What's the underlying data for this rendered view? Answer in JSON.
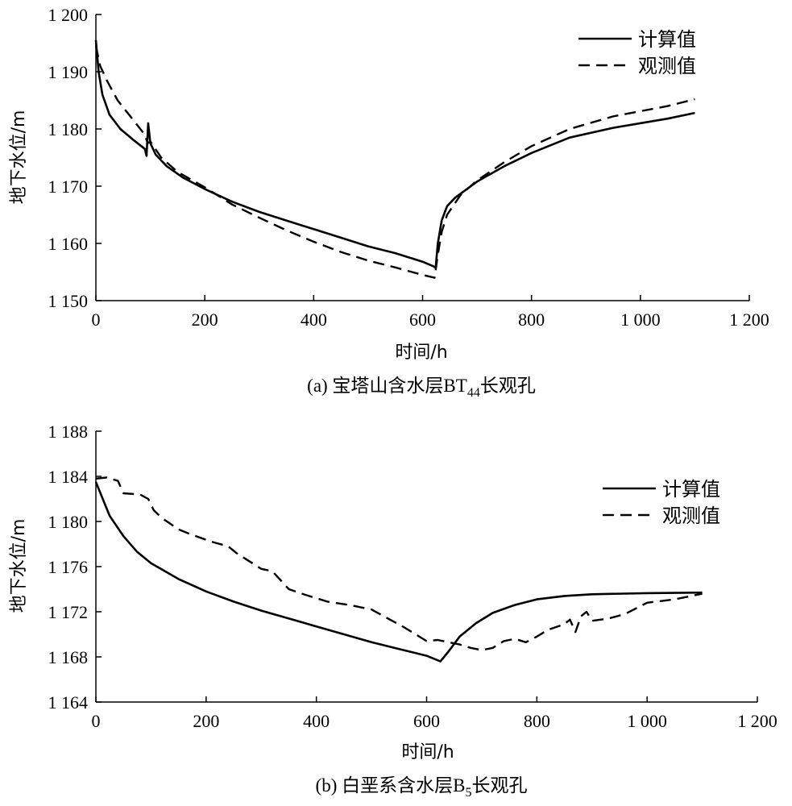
{
  "chart_data": [
    {
      "type": "line",
      "caption": "(a) 宝塔山含水层BT44长观孔",
      "caption_main": "(a) 宝塔山含水层BT",
      "caption_sub": "44",
      "caption_tail": "长观孔",
      "xlabel": "时间/h",
      "ylabel": "地下水位/m",
      "xlim": [
        0,
        1200
      ],
      "ylim": [
        1150,
        1200
      ],
      "xticks": [
        0,
        200,
        400,
        600,
        800,
        1000,
        1200
      ],
      "xtick_labels": [
        "0",
        "200",
        "400",
        "600",
        "800",
        "1 000",
        "1 200"
      ],
      "yticks": [
        1150,
        1160,
        1170,
        1180,
        1190,
        1200
      ],
      "ytick_labels": [
        "1 150",
        "1 160",
        "1 170",
        "1 180",
        "1 190",
        "1 200"
      ],
      "grid": false,
      "legend_position": "top-right",
      "series": [
        {
          "name": "计算值",
          "style": "solid",
          "points": [
            [
              0,
              1195.5
            ],
            [
              5,
              1190
            ],
            [
              12,
              1186
            ],
            [
              25,
              1182.5
            ],
            [
              45,
              1180
            ],
            [
              70,
              1178
            ],
            [
              90,
              1176.5
            ],
            [
              93,
              1175.3
            ],
            [
              96,
              1181
            ],
            [
              100,
              1177.5
            ],
            [
              110,
              1175.5
            ],
            [
              130,
              1173.5
            ],
            [
              160,
              1171.5
            ],
            [
              200,
              1169.5
            ],
            [
              250,
              1167.3
            ],
            [
              300,
              1165.5
            ],
            [
              350,
              1164
            ],
            [
              400,
              1162.5
            ],
            [
              450,
              1161
            ],
            [
              500,
              1159.5
            ],
            [
              550,
              1158.3
            ],
            [
              600,
              1156.8
            ],
            [
              620,
              1156
            ],
            [
              624,
              1155.7
            ],
            [
              628,
              1160
            ],
            [
              635,
              1164
            ],
            [
              645,
              1166.5
            ],
            [
              660,
              1168
            ],
            [
              700,
              1170.8
            ],
            [
              750,
              1173.5
            ],
            [
              800,
              1175.8
            ],
            [
              870,
              1178.5
            ],
            [
              950,
              1180.2
            ],
            [
              1050,
              1181.8
            ],
            [
              1100,
              1182.8
            ]
          ]
        },
        {
          "name": "观测值",
          "style": "dashed",
          "points": [
            [
              0,
              1194.5
            ],
            [
              8,
              1191
            ],
            [
              20,
              1188.5
            ],
            [
              40,
              1185
            ],
            [
              65,
              1182
            ],
            [
              90,
              1179
            ],
            [
              95,
              1177.5
            ],
            [
              100,
              1177.8
            ],
            [
              120,
              1175
            ],
            [
              150,
              1172.5
            ],
            [
              200,
              1169.8
            ],
            [
              250,
              1166.8
            ],
            [
              300,
              1164.5
            ],
            [
              350,
              1162.3
            ],
            [
              400,
              1160.3
            ],
            [
              450,
              1158.5
            ],
            [
              500,
              1157
            ],
            [
              550,
              1155.8
            ],
            [
              600,
              1154.5
            ],
            [
              622,
              1154
            ],
            [
              628,
              1158
            ],
            [
              635,
              1162
            ],
            [
              645,
              1165
            ],
            [
              670,
              1168.5
            ],
            [
              700,
              1171
            ],
            [
              750,
              1174.2
            ],
            [
              800,
              1177
            ],
            [
              870,
              1180
            ],
            [
              950,
              1182.2
            ],
            [
              1050,
              1184
            ],
            [
              1100,
              1185.2
            ]
          ]
        }
      ]
    },
    {
      "type": "line",
      "caption": "(b) 白垩系含水层B5长观孔",
      "caption_main": "(b) 白垩系含水层B",
      "caption_sub": "5",
      "caption_tail": "长观孔",
      "xlabel": "时间/h",
      "ylabel": "地下水位/m",
      "xlim": [
        0,
        1200
      ],
      "ylim": [
        1164,
        1188
      ],
      "xticks": [
        0,
        200,
        400,
        600,
        800,
        1000,
        1200
      ],
      "xtick_labels": [
        "0",
        "200",
        "400",
        "600",
        "800",
        "1 000",
        "1 200"
      ],
      "yticks": [
        1164,
        1168,
        1172,
        1176,
        1180,
        1184,
        1188
      ],
      "ytick_labels": [
        "1 164",
        "1 168",
        "1 172",
        "1 176",
        "1 180",
        "1 184",
        "1 188"
      ],
      "grid": false,
      "legend_position": "top-right",
      "series": [
        {
          "name": "计算值",
          "style": "solid",
          "points": [
            [
              0,
              1183.5
            ],
            [
              25,
              1180.5
            ],
            [
              50,
              1178.7
            ],
            [
              75,
              1177.3
            ],
            [
              100,
              1176.3
            ],
            [
              150,
              1174.9
            ],
            [
              200,
              1173.8
            ],
            [
              250,
              1172.9
            ],
            [
              300,
              1172.1
            ],
            [
              350,
              1171.4
            ],
            [
              400,
              1170.7
            ],
            [
              450,
              1170
            ],
            [
              500,
              1169.3
            ],
            [
              550,
              1168.7
            ],
            [
              600,
              1168.1
            ],
            [
              625,
              1167.6
            ],
            [
              640,
              1168.5
            ],
            [
              660,
              1169.8
            ],
            [
              690,
              1171
            ],
            [
              720,
              1171.9
            ],
            [
              760,
              1172.6
            ],
            [
              800,
              1173.1
            ],
            [
              850,
              1173.4
            ],
            [
              900,
              1173.55
            ],
            [
              1000,
              1173.65
            ],
            [
              1100,
              1173.7
            ]
          ]
        },
        {
          "name": "观测值",
          "style": "dashed",
          "points": [
            [
              0,
              1183.8
            ],
            [
              20,
              1183.9
            ],
            [
              40,
              1183.6
            ],
            [
              50,
              1182.5
            ],
            [
              80,
              1182.4
            ],
            [
              95,
              1182
            ],
            [
              105,
              1181
            ],
            [
              120,
              1180.3
            ],
            [
              150,
              1179.3
            ],
            [
              170,
              1178.9
            ],
            [
              210,
              1178.2
            ],
            [
              240,
              1177.8
            ],
            [
              255,
              1177.2
            ],
            [
              300,
              1175.8
            ],
            [
              320,
              1175.6
            ],
            [
              350,
              1174
            ],
            [
              380,
              1173.5
            ],
            [
              420,
              1172.9
            ],
            [
              460,
              1172.6
            ],
            [
              500,
              1172.2
            ],
            [
              560,
              1170.6
            ],
            [
              600,
              1169.4
            ],
            [
              620,
              1169.5
            ],
            [
              640,
              1169.3
            ],
            [
              660,
              1169.1
            ],
            [
              680,
              1168.8
            ],
            [
              700,
              1168.6
            ],
            [
              720,
              1168.8
            ],
            [
              740,
              1169.4
            ],
            [
              760,
              1169.6
            ],
            [
              780,
              1169.3
            ],
            [
              800,
              1169.8
            ],
            [
              820,
              1170.4
            ],
            [
              850,
              1170.9
            ],
            [
              860,
              1171.3
            ],
            [
              870,
              1170.2
            ],
            [
              880,
              1171.6
            ],
            [
              890,
              1172
            ],
            [
              900,
              1171.2
            ],
            [
              930,
              1171.4
            ],
            [
              960,
              1171.8
            ],
            [
              1000,
              1172.8
            ],
            [
              1050,
              1173.1
            ],
            [
              1100,
              1173.6
            ]
          ]
        }
      ]
    }
  ]
}
